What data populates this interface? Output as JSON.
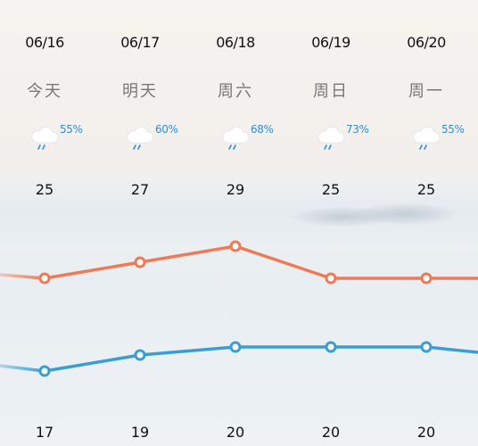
{
  "forecast": {
    "days": [
      {
        "date": "06/16",
        "weekday": "今天",
        "icon": "rain-cloud-icon",
        "pop": "55%",
        "high": "25",
        "low": "17"
      },
      {
        "date": "06/17",
        "weekday": "明天",
        "icon": "rain-cloud-icon",
        "pop": "60%",
        "high": "27",
        "low": "19"
      },
      {
        "date": "06/18",
        "weekday": "周六",
        "icon": "rain-cloud-icon",
        "pop": "68%",
        "high": "29",
        "low": "20"
      },
      {
        "date": "06/19",
        "weekday": "周日",
        "icon": "rain-cloud-icon",
        "pop": "73%",
        "high": "25",
        "low": "20"
      },
      {
        "date": "06/20",
        "weekday": "周一",
        "icon": "rain-cloud-icon",
        "pop": "55%",
        "high": "25",
        "low": "20"
      }
    ]
  },
  "colors": {
    "high_line": "#f07a55",
    "low_line": "#3a9ed6",
    "pop_text": "#2d8fe0"
  },
  "chart_data": {
    "type": "line",
    "categories": [
      "06/16",
      "06/17",
      "06/18",
      "06/19",
      "06/20"
    ],
    "series": [
      {
        "values": [
          25,
          27,
          29,
          25,
          25
        ],
        "color": "#f07a55"
      },
      {
        "values": [
          17,
          19,
          20,
          20,
          20
        ],
        "color": "#3a9ed6"
      }
    ]
  }
}
